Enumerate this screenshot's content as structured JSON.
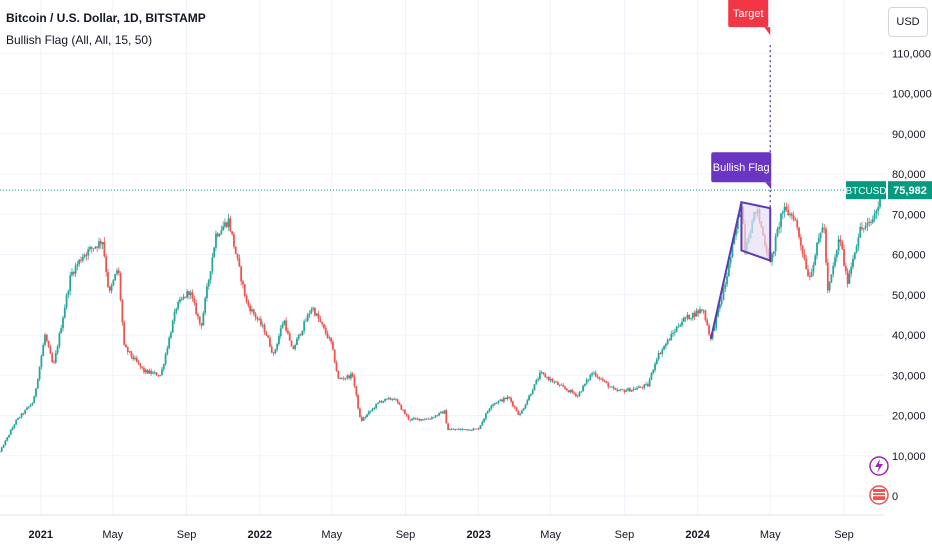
{
  "header": {
    "title": "Bitcoin / U.S. Dollar, 1D, BITSTAMP",
    "indicator": "Bullish Flag (All, All, 15, 50)"
  },
  "currency_button": "USD",
  "colors": {
    "up": "#26a69a",
    "down": "#ef5350",
    "flag": "#5b3bb0",
    "flag_fill": "#e7e0f5",
    "target_label": "#f23645",
    "bullish_label": "#6a35c2",
    "price_label": "#089981",
    "grid": "#f0f3fa"
  },
  "labels": {
    "target": "Target",
    "bullish_flag": "Bullish Flag",
    "symbol": "BTCUSD",
    "last_price": "75,982"
  },
  "chart_data": {
    "type": "candlestick",
    "title": "Bitcoin / U.S. Dollar, 1D, BITSTAMP",
    "ylim": [
      -2000,
      120000
    ],
    "y_ticks": [
      0,
      10000,
      20000,
      30000,
      40000,
      50000,
      60000,
      70000,
      80000,
      90000,
      100000,
      110000
    ],
    "y_tick_labels": [
      "0",
      "10,000",
      "20,000",
      "30,000",
      "40,000",
      "50,000",
      "60,000",
      "70,000",
      "80,000",
      "90,000",
      "100,000",
      "110,000"
    ],
    "x_ticks": [
      "2021",
      "May",
      "Sep",
      "2022",
      "May",
      "Sep",
      "2023",
      "May",
      "Sep",
      "2024",
      "May",
      "Sep"
    ],
    "x_start": "2020-10-25",
    "x_end": "2024-10-31",
    "last_price": 75982,
    "price_path": [
      [
        "2020-10-25",
        11000
      ],
      [
        "2020-11-20",
        18500
      ],
      [
        "2020-12-20",
        23500
      ],
      [
        "2021-01-08",
        40000
      ],
      [
        "2021-01-22",
        32000
      ],
      [
        "2021-02-20",
        55000
      ],
      [
        "2021-03-13",
        60000
      ],
      [
        "2021-04-14",
        63500
      ],
      [
        "2021-04-25",
        50000
      ],
      [
        "2021-05-10",
        57000
      ],
      [
        "2021-05-20",
        37000
      ],
      [
        "2021-06-22",
        31000
      ],
      [
        "2021-07-20",
        30000
      ],
      [
        "2021-08-15",
        47000
      ],
      [
        "2021-09-06",
        51000
      ],
      [
        "2021-09-25",
        42000
      ],
      [
        "2021-10-20",
        65000
      ],
      [
        "2021-11-10",
        68500
      ],
      [
        "2021-12-10",
        48000
      ],
      [
        "2022-01-10",
        41000
      ],
      [
        "2022-01-24",
        35000
      ],
      [
        "2022-02-10",
        44000
      ],
      [
        "2022-02-24",
        36000
      ],
      [
        "2022-03-29",
        47000
      ],
      [
        "2022-04-30",
        38000
      ],
      [
        "2022-05-12",
        29000
      ],
      [
        "2022-06-05",
        30000
      ],
      [
        "2022-06-18",
        18500
      ],
      [
        "2022-07-20",
        23500
      ],
      [
        "2022-08-13",
        24300
      ],
      [
        "2022-09-07",
        19000
      ],
      [
        "2022-10-10",
        19200
      ],
      [
        "2022-11-05",
        21000
      ],
      [
        "2022-11-10",
        16500
      ],
      [
        "2022-12-31",
        16600
      ],
      [
        "2023-01-22",
        22800
      ],
      [
        "2023-02-20",
        24500
      ],
      [
        "2023-03-10",
        20000
      ],
      [
        "2023-04-14",
        30500
      ],
      [
        "2023-05-20",
        27000
      ],
      [
        "2023-06-15",
        25000
      ],
      [
        "2023-07-10",
        30800
      ],
      [
        "2023-08-17",
        26000
      ],
      [
        "2023-09-15",
        26500
      ],
      [
        "2023-10-10",
        27500
      ],
      [
        "2023-10-25",
        34500
      ],
      [
        "2023-12-05",
        43500
      ],
      [
        "2024-01-10",
        46500
      ],
      [
        "2024-01-23",
        39000
      ],
      [
        "2024-02-15",
        52000
      ],
      [
        "2024-03-14",
        73000
      ],
      [
        "2024-03-20",
        62000
      ],
      [
        "2024-04-08",
        71500
      ],
      [
        "2024-05-01",
        57500
      ],
      [
        "2024-05-21",
        71000
      ],
      [
        "2024-06-10",
        69500
      ],
      [
        "2024-07-05",
        54000
      ],
      [
        "2024-07-29",
        68500
      ],
      [
        "2024-08-05",
        50500
      ],
      [
        "2024-08-25",
        64500
      ],
      [
        "2024-09-06",
        53000
      ],
      [
        "2024-09-27",
        66000
      ],
      [
        "2024-10-15",
        67500
      ],
      [
        "2024-10-29",
        72500
      ],
      [
        "2024-10-31",
        75982
      ]
    ],
    "annotations": {
      "flagpole": [
        [
          "2024-01-23",
          39000
        ],
        [
          "2024-03-14",
          73000
        ]
      ],
      "flag_channel": {
        "upper": [
          [
            "2024-03-14",
            73000
          ],
          [
            "2024-05-01",
            71500
          ]
        ],
        "lower": [
          [
            "2024-03-14",
            61000
          ],
          [
            "2024-05-01",
            58500
          ]
        ]
      },
      "target_price": 113000,
      "target_date": "2024-05-01"
    }
  }
}
